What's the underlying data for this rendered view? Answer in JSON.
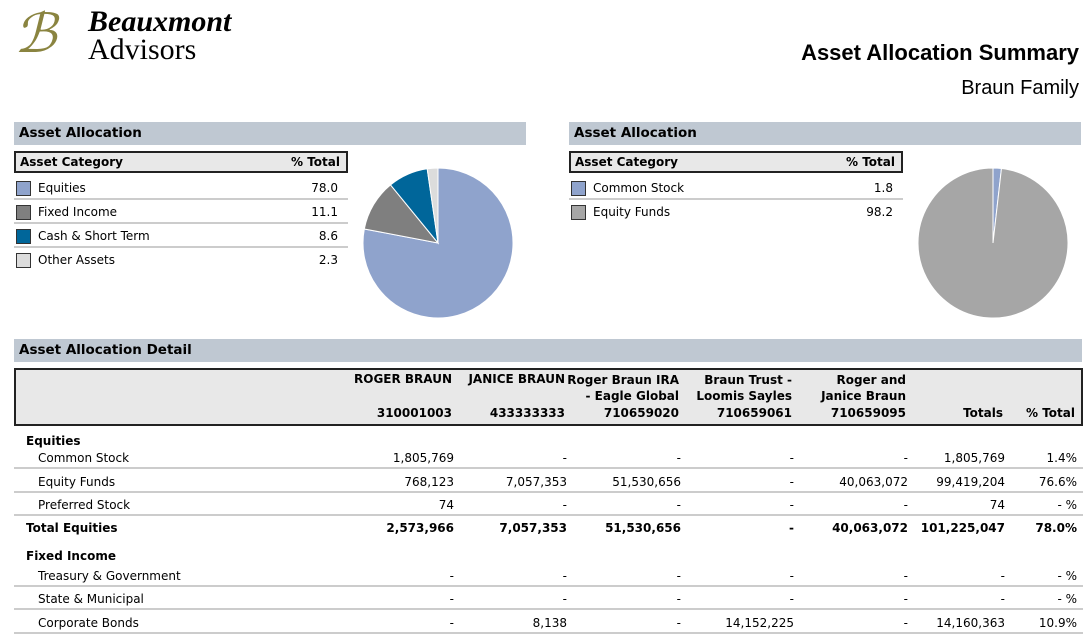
{
  "logo": {
    "line1": "Beauxmont",
    "line2": "Advisors",
    "monogram": "B"
  },
  "header": {
    "title": "Asset Allocation Summary",
    "subtitle": "Braun Family"
  },
  "colors": {
    "equities": "#8fa3cc",
    "fixed_income": "#7f7f7f",
    "cash": "#00669a",
    "other": "#dcdcdc",
    "equity_funds": "#a6a6a6",
    "section_bar": "#bfc8d2"
  },
  "allocation1": {
    "title": "Asset Allocation",
    "col_category": "Asset Category",
    "col_total": "% Total",
    "items": [
      {
        "label": "Equities",
        "value": "78.0",
        "color": "#8fa3cc"
      },
      {
        "label": "Fixed Income",
        "value": "11.1",
        "color": "#7f7f7f"
      },
      {
        "label": "Cash & Short Term",
        "value": "8.6",
        "color": "#00669a"
      },
      {
        "label": "Other Assets",
        "value": "2.3",
        "color": "#dcdcdc"
      }
    ]
  },
  "allocation2": {
    "title": "Asset Allocation",
    "col_category": "Asset Category",
    "col_total": "% Total",
    "items": [
      {
        "label": "Common Stock",
        "value": "1.8",
        "color": "#8fa3cc"
      },
      {
        "label": "Equity Funds",
        "value": "98.2",
        "color": "#a6a6a6"
      }
    ]
  },
  "detail": {
    "title": "Asset Allocation Detail",
    "columns": [
      {
        "name": "ROGER BRAUN",
        "acct": "310001003"
      },
      {
        "name": "JANICE BRAUN",
        "acct": "433333333"
      },
      {
        "name": "Roger Braun IRA - Eagle Global",
        "acct": "710659020"
      },
      {
        "name": "Braun Trust - Loomis Sayles",
        "acct": "710659061"
      },
      {
        "name": "Roger and Janice Braun",
        "acct": "710659095"
      },
      {
        "name": "",
        "acct": "Totals"
      },
      {
        "name": "",
        "acct": "% Total"
      }
    ],
    "rows": [
      {
        "type": "group",
        "label": "Equities",
        "cells": []
      },
      {
        "type": "item",
        "label": "Common Stock",
        "cells": [
          "1,805,769",
          "-",
          "-",
          "-",
          "-",
          "1,805,769",
          "1.4%"
        ]
      },
      {
        "type": "item",
        "label": "Equity Funds",
        "cells": [
          "768,123",
          "7,057,353",
          "51,530,656",
          "-",
          "40,063,072",
          "99,419,204",
          "76.6%"
        ]
      },
      {
        "type": "item",
        "label": "Preferred Stock",
        "cells": [
          "74",
          "-",
          "-",
          "-",
          "-",
          "74",
          "- %"
        ]
      },
      {
        "type": "total",
        "label": "Total Equities",
        "cells": [
          "2,573,966",
          "7,057,353",
          "51,530,656",
          "-",
          "40,063,072",
          "101,225,047",
          "78.0%"
        ]
      },
      {
        "type": "group",
        "label": "Fixed Income",
        "cells": []
      },
      {
        "type": "item",
        "label": "Treasury & Government",
        "cells": [
          "-",
          "-",
          "-",
          "-",
          "-",
          "-",
          "- %"
        ]
      },
      {
        "type": "item",
        "label": "State & Municipal",
        "cells": [
          "-",
          "-",
          "-",
          "-",
          "-",
          "-",
          "- %"
        ]
      },
      {
        "type": "item",
        "label": "Corporate Bonds",
        "cells": [
          "-",
          "8,138",
          "-",
          "14,152,225",
          "-",
          "14,160,363",
          "10.9%"
        ]
      }
    ]
  }
}
